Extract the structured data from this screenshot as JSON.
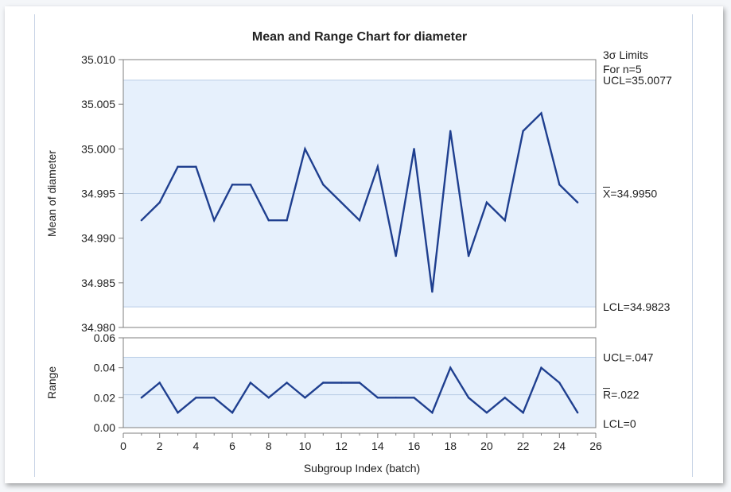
{
  "chart_data": {
    "title": "Mean and Range Chart for diameter",
    "xlabel": "Subgroup Index (batch)",
    "xlim": [
      0,
      26
    ],
    "xticks": [
      0,
      2,
      4,
      6,
      8,
      10,
      12,
      14,
      16,
      18,
      20,
      22,
      24,
      26
    ],
    "x": [
      1,
      2,
      3,
      4,
      5,
      6,
      7,
      8,
      9,
      10,
      11,
      12,
      13,
      14,
      15,
      16,
      17,
      18,
      19,
      20,
      21,
      22,
      23,
      24,
      25
    ],
    "limits_header": [
      "3σ Limits",
      "For n=5"
    ],
    "mean_chart": {
      "type": "line",
      "ylabel": "Mean of diameter",
      "ylim": [
        34.98,
        35.01
      ],
      "yticks": [
        "34.980",
        "34.985",
        "34.990",
        "34.995",
        "35.000",
        "35.005",
        "35.010"
      ],
      "values": [
        34.992,
        34.994,
        34.998,
        34.998,
        34.992,
        34.996,
        34.996,
        34.992,
        34.992,
        35.0,
        34.996,
        34.994,
        34.992,
        34.998,
        34.988,
        35.0,
        34.984,
        35.002,
        34.988,
        34.994,
        34.992,
        35.002,
        35.004,
        34.996,
        34.994
      ],
      "ucl": 35.0077,
      "center": 34.995,
      "lcl": 34.9823,
      "ucl_label": "UCL=35.0077",
      "center_label_symbol": "X",
      "center_label_value": "=34.9950",
      "lcl_label": "LCL=34.9823"
    },
    "range_chart": {
      "type": "line",
      "ylabel": "Range",
      "ylim": [
        0,
        0.06
      ],
      "yticks": [
        "0.00",
        "0.02",
        "0.04",
        "0.06"
      ],
      "values": [
        0.02,
        0.03,
        0.01,
        0.02,
        0.02,
        0.01,
        0.03,
        0.02,
        0.03,
        0.02,
        0.03,
        0.03,
        0.03,
        0.02,
        0.02,
        0.02,
        0.01,
        0.04,
        0.02,
        0.01,
        0.02,
        0.01,
        0.04,
        0.03,
        0.01
      ],
      "ucl": 0.047,
      "center": 0.022,
      "lcl": 0,
      "ucl_label": "UCL=.047",
      "center_label_symbol": "R",
      "center_label_value": "=.022",
      "lcl_label": "LCL=0"
    },
    "colors": {
      "line": "#1f3f8f",
      "band": "#e6f0fc",
      "limit_line": "#b9cde6",
      "axis": "#7f7f7f"
    }
  }
}
